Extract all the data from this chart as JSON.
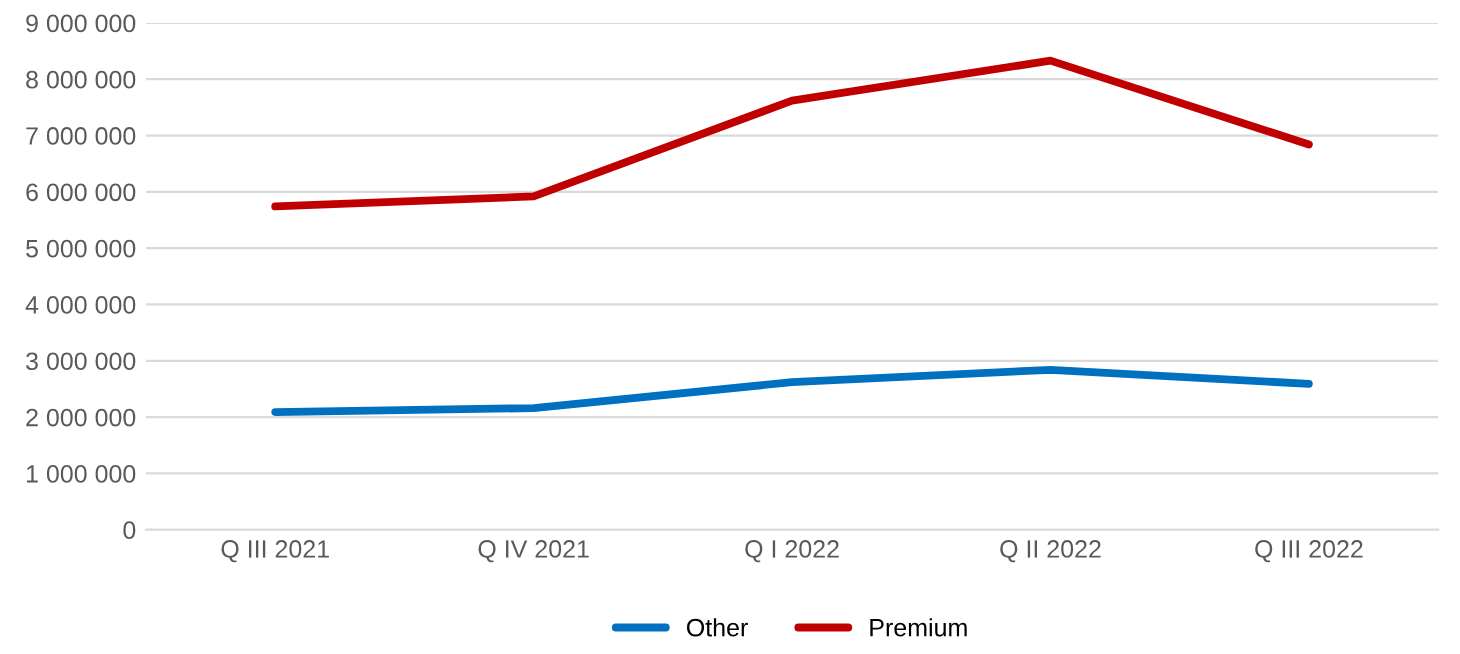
{
  "chart_data": {
    "type": "line",
    "categories": [
      "Q III 2021",
      "Q IV 2021",
      "Q I 2022",
      "Q II 2022",
      "Q III 2022"
    ],
    "series": [
      {
        "name": "Other",
        "color": "#0070c0",
        "values": [
          2090000,
          2160000,
          2620000,
          2840000,
          2590000
        ]
      },
      {
        "name": "Premium",
        "color": "#c00000",
        "values": [
          5740000,
          5920000,
          7620000,
          8330000,
          6840000
        ]
      }
    ],
    "ylim": [
      0,
      9000000
    ],
    "yticks": [
      0,
      {
        "value": 1000000,
        "label": "1 000 000"
      },
      {
        "value": 2000000,
        "label": "2 000 000"
      },
      {
        "value": 3000000,
        "label": "3 000 000"
      },
      {
        "value": 4000000,
        "label": "4 000 000"
      },
      {
        "value": 5000000,
        "label": "5 000 000"
      },
      {
        "value": 6000000,
        "label": "6 000 000"
      },
      {
        "value": 7000000,
        "label": "7 000 000"
      },
      {
        "value": 8000000,
        "label": "8 000 000"
      },
      {
        "value": 9000000,
        "label": "9 000 000"
      }
    ],
    "grid": "y",
    "legend": "bottom",
    "marker": "none",
    "line_style": "solid"
  }
}
